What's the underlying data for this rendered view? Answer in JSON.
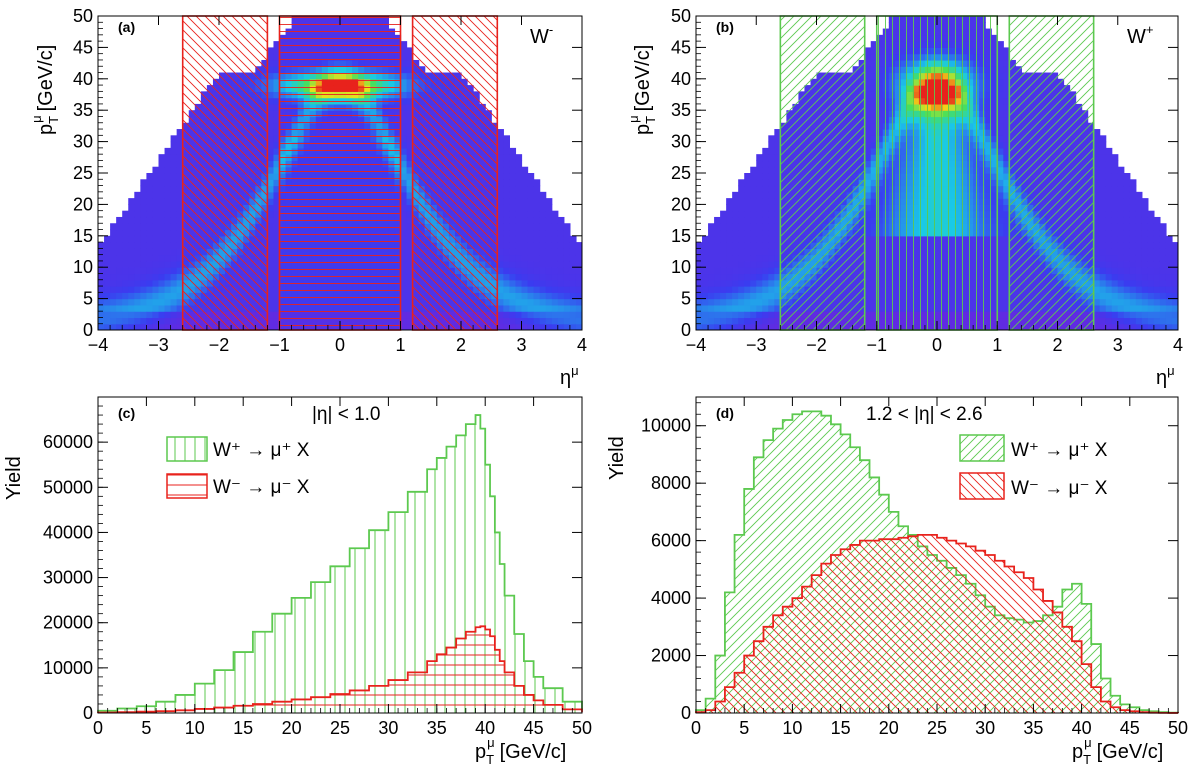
{
  "colors": {
    "red": "#e8221c",
    "green": "#5cc94f"
  },
  "chart_data": [
    {
      "id": "a",
      "type": "heatmap",
      "label": "(a)",
      "species": "W",
      "charge": "-",
      "xlabel": "η",
      "xlabel_sup": "μ",
      "ylabel_main": "p",
      "ylabel_sub": "T",
      "ylabel_sup": "μ",
      "ylabel_unit": "[GeV/c]",
      "xlim": [
        -4,
        4
      ],
      "ylim": [
        0,
        50
      ],
      "xticks": [
        "−4",
        "−3",
        "−2",
        "−1",
        "0",
        "1",
        "2",
        "3",
        "4"
      ],
      "yticks": [
        "0",
        "5",
        "10",
        "15",
        "20",
        "25",
        "30",
        "35",
        "40",
        "45",
        "50"
      ],
      "regions": [
        {
          "eta": [
            -2.6,
            -1.2
          ],
          "pt": [
            0,
            50
          ],
          "hatch": "diag-neg"
        },
        {
          "eta": [
            -1.0,
            1.0
          ],
          "pt": [
            0,
            50
          ],
          "hatch": "horizontal"
        },
        {
          "eta": [
            1.2,
            2.6
          ],
          "pt": [
            0,
            50
          ],
          "hatch": "diag-neg"
        }
      ],
      "jacobian_peak_pt": 39
    },
    {
      "id": "b",
      "type": "heatmap",
      "label": "(b)",
      "species": "W",
      "charge": "+",
      "xlabel": "η",
      "xlabel_sup": "μ",
      "ylabel_main": "p",
      "ylabel_sub": "T",
      "ylabel_sup": "μ",
      "ylabel_unit": "[GeV/c]",
      "xlim": [
        -4,
        4
      ],
      "ylim": [
        0,
        50
      ],
      "xticks": [
        "−4",
        "−3",
        "−2",
        "−1",
        "0",
        "1",
        "2",
        "3",
        "4"
      ],
      "yticks": [
        "0",
        "5",
        "10",
        "15",
        "20",
        "25",
        "30",
        "35",
        "40",
        "45",
        "50"
      ],
      "regions": [
        {
          "eta": [
            -2.6,
            -1.2
          ],
          "pt": [
            0,
            50
          ],
          "hatch": "diag-pos"
        },
        {
          "eta": [
            -1.0,
            1.0
          ],
          "pt": [
            0,
            50
          ],
          "hatch": "vertical"
        },
        {
          "eta": [
            1.2,
            2.6
          ],
          "pt": [
            0,
            50
          ],
          "hatch": "diag-pos"
        }
      ],
      "jacobian_peak_pt": 39
    },
    {
      "id": "c",
      "type": "area",
      "label": "(c)",
      "region_label": "|η| < 1.0",
      "xlabel_main": "p",
      "xlabel_sub": "T",
      "xlabel_sup": "μ",
      "xlabel_unit": "[GeV/c]",
      "ylabel": "Yield",
      "xlim": [
        0,
        50
      ],
      "ylim": [
        0,
        70000
      ],
      "xticks": [
        "0",
        "5",
        "10",
        "15",
        "20",
        "25",
        "30",
        "35",
        "40",
        "45",
        "50"
      ],
      "yticks": [
        "0",
        "10000",
        "20000",
        "30000",
        "40000",
        "50000",
        "60000"
      ],
      "x": [
        0,
        2,
        4,
        6,
        8,
        10,
        12,
        14,
        16,
        18,
        20,
        22,
        24,
        26,
        28,
        30,
        32,
        34,
        35,
        36,
        37,
        38,
        39,
        39.5,
        40,
        40.5,
        41,
        41.5,
        42,
        43,
        44,
        45,
        46,
        48,
        50
      ],
      "series": [
        {
          "name": "W⁺ → μ⁺ X",
          "color": "green",
          "hatch": "vertical",
          "values": [
            500,
            1000,
            1500,
            2500,
            4000,
            6500,
            9500,
            13500,
            18000,
            22000,
            25500,
            29000,
            32500,
            36500,
            40500,
            44500,
            49000,
            54000,
            56500,
            59000,
            61500,
            64000,
            66000,
            63000,
            55000,
            48000,
            40000,
            33000,
            26000,
            17500,
            11500,
            8000,
            5500,
            2500,
            800
          ]
        },
        {
          "name": "W⁻ → μ⁻ X",
          "color": "red",
          "hatch": "horizontal",
          "values": [
            100,
            200,
            300,
            400,
            600,
            900,
            1200,
            1600,
            2000,
            2500,
            3000,
            3500,
            4200,
            5000,
            6000,
            7300,
            9000,
            11500,
            13000,
            14500,
            16500,
            18000,
            19000,
            19200,
            18500,
            17000,
            14000,
            11500,
            9000,
            6000,
            4000,
            2800,
            1800,
            800,
            200
          ]
        }
      ],
      "legend": [
        "W⁺ → μ⁺ X",
        "W⁻ → μ⁻ X"
      ]
    },
    {
      "id": "d",
      "type": "area",
      "label": "(d)",
      "region_label": "1.2 < |η| < 2.6",
      "xlabel_main": "p",
      "xlabel_sub": "T",
      "xlabel_sup": "μ",
      "xlabel_unit": "[GeV/c]",
      "ylabel": "Yield",
      "xlim": [
        0,
        50
      ],
      "ylim": [
        0,
        11000
      ],
      "xticks": [
        "0",
        "5",
        "10",
        "15",
        "20",
        "25",
        "30",
        "35",
        "40",
        "45",
        "50"
      ],
      "yticks": [
        "0",
        "2000",
        "4000",
        "6000",
        "8000",
        "10000"
      ],
      "x": [
        0,
        1,
        2,
        3,
        4,
        5,
        6,
        7,
        8,
        9,
        10,
        11,
        12,
        13,
        14,
        15,
        16,
        17,
        18,
        19,
        20,
        21,
        22,
        23,
        24,
        25,
        26,
        27,
        28,
        29,
        30,
        31,
        32,
        33,
        34,
        35,
        36,
        37,
        38,
        39,
        40,
        41,
        42,
        43,
        44,
        45,
        46,
        47,
        48,
        49,
        50
      ],
      "series": [
        {
          "name": "W⁺ → μ⁺ X",
          "color": "green",
          "hatch": "diag-pos",
          "values": [
            100,
            500,
            2000,
            4200,
            6200,
            7800,
            8900,
            9500,
            9900,
            10200,
            10400,
            10500,
            10500,
            10350,
            10050,
            9700,
            9250,
            8800,
            8200,
            7600,
            7000,
            6500,
            6200,
            5800,
            5500,
            5300,
            5050,
            4800,
            4500,
            4100,
            3700,
            3400,
            3300,
            3250,
            3150,
            3200,
            3400,
            3700,
            4300,
            4500,
            3800,
            2400,
            1200,
            600,
            300,
            200,
            100,
            60,
            30,
            10,
            0
          ]
        },
        {
          "name": "W⁻ → μ⁻ X",
          "color": "red",
          "hatch": "diag-neg",
          "values": [
            30,
            100,
            400,
            900,
            1400,
            2000,
            2500,
            3000,
            3400,
            3700,
            4000,
            4400,
            4800,
            5200,
            5500,
            5700,
            5850,
            6000,
            6000,
            6050,
            6050,
            6100,
            6150,
            6200,
            6200,
            6100,
            6000,
            5900,
            5800,
            5650,
            5500,
            5300,
            5100,
            4900,
            4700,
            4300,
            3900,
            3500,
            3000,
            2500,
            1700,
            900,
            400,
            200,
            100,
            60,
            30,
            10,
            5,
            2,
            0
          ]
        }
      ],
      "legend": [
        "W⁺ → μ⁺ X",
        "W⁻ → μ⁻ X"
      ]
    }
  ]
}
